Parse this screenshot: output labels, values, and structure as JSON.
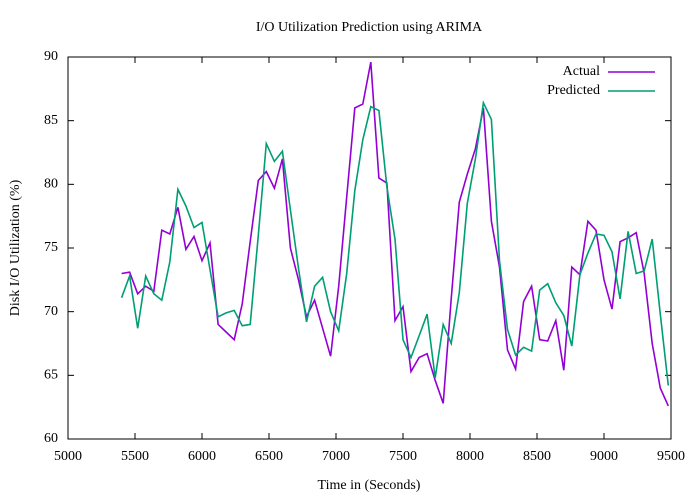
{
  "chart_data": {
    "type": "line",
    "title": "I/O Utilization Prediction using ARIMA",
    "x_label": "Time in (Seconds)",
    "y_label": "Disk I/O Utilization (%)",
    "x": [
      5400,
      5460,
      5520,
      5580,
      5640,
      5700,
      5760,
      5820,
      5880,
      5940,
      6000,
      6060,
      6120,
      6180,
      6240,
      6300,
      6360,
      6420,
      6480,
      6540,
      6600,
      6660,
      6720,
      6780,
      6840,
      6900,
      6960,
      7020,
      7080,
      7140,
      7200,
      7260,
      7320,
      7380,
      7440,
      7500,
      7560,
      7620,
      7680,
      7740,
      7800,
      7860,
      7920,
      7980,
      8040,
      8100,
      8160,
      8220,
      8280,
      8340,
      8400,
      8460,
      8520,
      8580,
      8640,
      8700,
      8760,
      8820,
      8880,
      8940,
      9000,
      9060,
      9120,
      9180,
      9240,
      9300,
      9360,
      9420,
      9480
    ],
    "series": [
      {
        "name": "Actual",
        "color": "#9400d3",
        "values": [
          73.0,
          73.1,
          71.4,
          72.0,
          71.6,
          76.4,
          76.1,
          78.2,
          74.9,
          75.9,
          74.0,
          75.4,
          69.0,
          68.4,
          67.8,
          70.6,
          75.5,
          80.3,
          81.0,
          79.7,
          82.0,
          75.0,
          72.5,
          69.6,
          70.9,
          68.7,
          66.5,
          72.0,
          79.0,
          86.0,
          86.3,
          89.6,
          80.5,
          80.1,
          69.3,
          70.4,
          65.3,
          66.4,
          66.7,
          64.6,
          62.8,
          71.0,
          78.6,
          80.8,
          82.8,
          86.0,
          77.1,
          73.5,
          67.0,
          65.5,
          70.8,
          72.0,
          67.8,
          67.7,
          69.3,
          65.4,
          73.5,
          72.9,
          77.1,
          76.4,
          72.5,
          70.2,
          75.5,
          75.8,
          76.2,
          73.0,
          67.5,
          64.0,
          62.6
        ]
      },
      {
        "name": "Predicted",
        "color": "#009e73",
        "values": [
          71.1,
          72.8,
          68.7,
          72.8,
          71.4,
          70.9,
          73.9,
          79.6,
          78.3,
          76.6,
          77.0,
          73.3,
          69.6,
          69.9,
          70.1,
          68.9,
          69.0,
          76.0,
          83.2,
          81.8,
          82.6,
          78.0,
          73.4,
          69.2,
          72.0,
          72.7,
          70.0,
          68.5,
          73.0,
          79.5,
          83.5,
          86.1,
          85.8,
          79.8,
          75.7,
          67.8,
          66.4,
          68.1,
          69.8,
          64.8,
          69.0,
          67.5,
          71.5,
          78.5,
          82.0,
          86.4,
          85.1,
          74.0,
          68.6,
          66.6,
          67.2,
          66.9,
          71.7,
          72.2,
          70.7,
          69.7,
          67.3,
          72.9,
          74.6,
          76.1,
          76.0,
          74.7,
          71.0,
          76.3,
          73.0,
          73.2,
          75.7,
          69.8,
          64.2
        ]
      }
    ],
    "xlim": [
      5000,
      9500
    ],
    "xticks": [
      5000,
      5500,
      6000,
      6500,
      7000,
      7500,
      8000,
      8500,
      9000,
      9500
    ],
    "ylim": [
      60,
      90
    ],
    "yticks": [
      60,
      65,
      70,
      75,
      80,
      85,
      90
    ],
    "legend": "top-right"
  }
}
